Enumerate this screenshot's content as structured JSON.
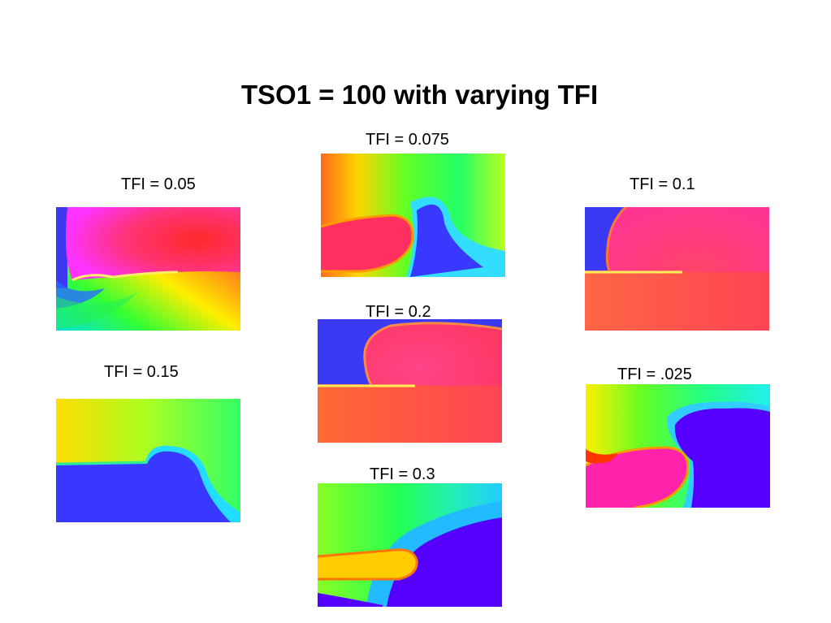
{
  "slide": {
    "title": "TSO1 = 100 with varying TFI",
    "panels": [
      {
        "label": "TFI = 0.05"
      },
      {
        "label": "TFI = 0.075"
      },
      {
        "label": "TFI = 0.1"
      },
      {
        "label": "TFI = 0.2"
      },
      {
        "label": "TFI = 0.15"
      },
      {
        "label": "TFI = .025"
      },
      {
        "label": "TFI = 0.3"
      }
    ]
  }
}
